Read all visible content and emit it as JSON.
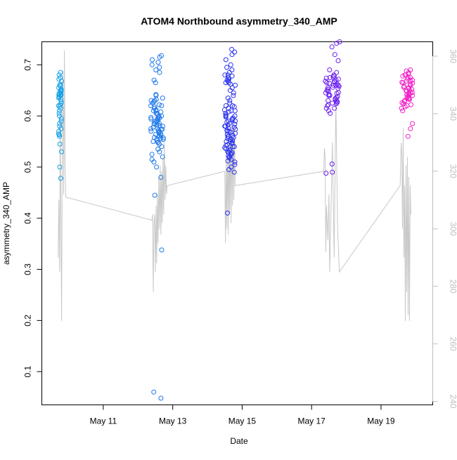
{
  "chart_data": {
    "type": "scatter",
    "title": "ATOM4 Northbound asymmetry_340_AMP",
    "xlabel": "Date",
    "ylabel": "asymmetry_340_AMP",
    "x_ticks": [
      "May 11",
      "May 13",
      "May 15",
      "May 17",
      "May 19"
    ],
    "x_tick_days": [
      11,
      13,
      15,
      17,
      19
    ],
    "xlim": [
      9.23,
      20.49
    ],
    "ylim": [
      0.035,
      0.745
    ],
    "y_ticks": [
      0.1,
      0.2,
      0.3,
      0.4,
      0.5,
      0.6,
      0.7
    ],
    "y2lim": [
      238.8,
      365.0
    ],
    "y2_ticks": [
      240,
      260,
      280,
      300,
      320,
      340,
      360
    ],
    "grid": false,
    "colors": {
      "axis": "#000000",
      "secondary_axis": "#bebebe",
      "line": "#c8c8c8",
      "point_gradient": [
        "#14a0e6",
        "#1e78ea",
        "#2a32ee",
        "#6a1ef0",
        "#c41eea",
        "#f01ec8"
      ]
    },
    "series": [
      {
        "marker": "circle-open",
        "clusters": [
          {
            "day": 9.75,
            "spread": 0.1,
            "color": "#14a0e6",
            "points": [
              0.685,
              0.68,
              0.675,
              0.668,
              0.662,
              0.658,
              0.655,
              0.652,
              0.65,
              0.648,
              0.646,
              0.645,
              0.643,
              0.642,
              0.64,
              0.638,
              0.635,
              0.632,
              0.628,
              0.625,
              0.62,
              0.618,
              0.615,
              0.61,
              0.605,
              0.6,
              0.595,
              0.59,
              0.585,
              0.58,
              0.575,
              0.57,
              0.565,
              0.563,
              0.56,
              0.545,
              0.53,
              0.5,
              0.478,
              0.672,
              0.66,
              0.65,
              0.641,
              0.637,
              0.622
            ]
          },
          {
            "day": 12.55,
            "spread": 0.36,
            "color": "#1e78ea",
            "points": [
              0.718,
              0.715,
              0.71,
              0.705,
              0.7,
              0.695,
              0.69,
              0.685,
              0.67,
              0.665,
              0.642,
              0.64,
              0.635,
              0.632,
              0.63,
              0.628,
              0.625,
              0.622,
              0.62,
              0.618,
              0.615,
              0.612,
              0.61,
              0.608,
              0.605,
              0.603,
              0.6,
              0.598,
              0.596,
              0.594,
              0.592,
              0.59,
              0.588,
              0.586,
              0.584,
              0.582,
              0.58,
              0.578,
              0.576,
              0.574,
              0.572,
              0.57,
              0.568,
              0.566,
              0.564,
              0.562,
              0.56,
              0.558,
              0.556,
              0.554,
              0.552,
              0.55,
              0.548,
              0.545,
              0.54,
              0.535,
              0.53,
              0.525,
              0.52,
              0.515,
              0.51,
              0.5,
              0.48,
              0.445,
              0.338,
              0.06,
              0.048,
              0.61,
              0.605,
              0.597,
              0.589,
              0.581,
              0.573,
              0.565,
              0.557,
              0.549,
              0.62,
              0.63,
              0.575,
              0.585,
              0.595,
              0.6,
              0.57,
              0.56,
              0.555
            ]
          },
          {
            "day": 14.65,
            "spread": 0.32,
            "color": "#2a32ee",
            "points": [
              0.73,
              0.725,
              0.72,
              0.71,
              0.7,
              0.695,
              0.69,
              0.685,
              0.68,
              0.678,
              0.675,
              0.672,
              0.67,
              0.668,
              0.665,
              0.662,
              0.66,
              0.655,
              0.65,
              0.645,
              0.64,
              0.635,
              0.63,
              0.625,
              0.62,
              0.618,
              0.615,
              0.612,
              0.61,
              0.608,
              0.605,
              0.602,
              0.6,
              0.598,
              0.596,
              0.594,
              0.592,
              0.59,
              0.588,
              0.586,
              0.584,
              0.582,
              0.58,
              0.578,
              0.576,
              0.574,
              0.572,
              0.57,
              0.568,
              0.566,
              0.564,
              0.562,
              0.56,
              0.558,
              0.556,
              0.554,
              0.552,
              0.55,
              0.548,
              0.546,
              0.544,
              0.542,
              0.54,
              0.538,
              0.536,
              0.534,
              0.532,
              0.53,
              0.528,
              0.526,
              0.524,
              0.522,
              0.52,
              0.518,
              0.515,
              0.512,
              0.51,
              0.505,
              0.5,
              0.495,
              0.49,
              0.41,
              0.68,
              0.672,
              0.665,
              0.6,
              0.59,
              0.58,
              0.57,
              0.56,
              0.55,
              0.54,
              0.53,
              0.61,
              0.62
            ]
          },
          {
            "day": 17.6,
            "spread": 0.42,
            "color": "#6a1ef0",
            "points": [
              0.745,
              0.742,
              0.735,
              0.72,
              0.708,
              0.69,
              0.685,
              0.68,
              0.678,
              0.676,
              0.674,
              0.672,
              0.67,
              0.668,
              0.666,
              0.664,
              0.662,
              0.66,
              0.658,
              0.656,
              0.654,
              0.652,
              0.65,
              0.648,
              0.646,
              0.644,
              0.642,
              0.64,
              0.638,
              0.636,
              0.634,
              0.632,
              0.63,
              0.628,
              0.626,
              0.624,
              0.622,
              0.62,
              0.615,
              0.61,
              0.605,
              0.506,
              0.49,
              0.488,
              0.675,
              0.668,
              0.66,
              0.655,
              0.645,
              0.64,
              0.63,
              0.625,
              0.615,
              0.66,
              0.665
            ]
          },
          {
            "day": 19.75,
            "spread": 0.32,
            "color": "#f01ec8",
            "points": [
              0.69,
              0.688,
              0.685,
              0.682,
              0.68,
              0.678,
              0.675,
              0.672,
              0.67,
              0.668,
              0.666,
              0.664,
              0.662,
              0.66,
              0.658,
              0.656,
              0.654,
              0.652,
              0.65,
              0.648,
              0.646,
              0.644,
              0.642,
              0.64,
              0.638,
              0.636,
              0.634,
              0.632,
              0.63,
              0.628,
              0.626,
              0.624,
              0.622,
              0.62,
              0.618,
              0.615,
              0.61,
              0.585,
              0.575,
              0.56,
              0.67,
              0.66,
              0.65,
              0.645,
              0.64,
              0.635,
              0.655,
              0.665,
              0.675,
              0.68
            ]
          }
        ]
      },
      {
        "axis": "secondary",
        "type": "line",
        "color": "#c8c8c8",
        "points": [
          [
            9.7,
            290
          ],
          [
            9.72,
            310
          ],
          [
            9.74,
            285
          ],
          [
            9.76,
            340
          ],
          [
            9.78,
            300
          ],
          [
            9.8,
            268
          ],
          [
            9.82,
            330
          ],
          [
            9.84,
            355
          ],
          [
            9.86,
            312
          ],
          [
            9.88,
            362
          ],
          [
            9.9,
            322
          ],
          [
            9.92,
            311
          ],
          [
            12.4,
            303
          ],
          [
            12.42,
            305
          ],
          [
            12.44,
            278
          ],
          [
            12.46,
            302
          ],
          [
            12.48,
            305
          ],
          [
            12.5,
            285
          ],
          [
            12.52,
            308
          ],
          [
            12.54,
            288
          ],
          [
            12.56,
            312
          ],
          [
            12.58,
            295
          ],
          [
            12.6,
            318
          ],
          [
            12.62,
            300
          ],
          [
            12.64,
            322
          ],
          [
            12.66,
            298
          ],
          [
            12.68,
            320
          ],
          [
            12.7,
            302
          ],
          [
            12.72,
            325
          ],
          [
            12.74,
            305
          ],
          [
            12.76,
            330
          ],
          [
            12.78,
            310
          ],
          [
            12.8,
            322
          ],
          [
            12.82,
            312
          ],
          [
            12.84,
            315
          ],
          [
            14.5,
            320
          ],
          [
            14.52,
            295
          ],
          [
            14.54,
            325
          ],
          [
            14.56,
            300
          ],
          [
            14.58,
            330
          ],
          [
            14.6,
            298
          ],
          [
            14.62,
            332
          ],
          [
            14.64,
            305
          ],
          [
            14.66,
            334
          ],
          [
            14.68,
            302
          ],
          [
            14.7,
            336
          ],
          [
            14.72,
            308
          ],
          [
            14.74,
            338
          ],
          [
            14.76,
            310
          ],
          [
            14.78,
            335
          ],
          [
            14.8,
            315
          ],
          [
            17.35,
            320
          ],
          [
            17.37,
            328
          ],
          [
            17.39,
            325
          ],
          [
            17.41,
            292
          ],
          [
            17.43,
            308
          ],
          [
            17.45,
            302
          ],
          [
            17.47,
            296
          ],
          [
            17.5,
            312
          ],
          [
            17.52,
            285
          ],
          [
            17.55,
            300
          ],
          [
            17.6,
            330
          ],
          [
            17.65,
            290
          ],
          [
            17.7,
            345
          ],
          [
            17.75,
            300
          ],
          [
            17.8,
            285
          ],
          [
            19.55,
            315
          ],
          [
            19.58,
            330
          ],
          [
            19.6,
            325
          ],
          [
            19.62,
            300
          ],
          [
            19.64,
            335
          ],
          [
            19.66,
            290
          ],
          [
            19.68,
            315
          ],
          [
            19.7,
            268
          ],
          [
            19.72,
            322
          ],
          [
            19.74,
            278
          ],
          [
            19.76,
            325
          ],
          [
            19.78,
            270
          ],
          [
            19.8,
            318
          ],
          [
            19.82,
            268
          ],
          [
            19.84,
            315
          ],
          [
            19.86,
            305
          ]
        ]
      }
    ]
  }
}
